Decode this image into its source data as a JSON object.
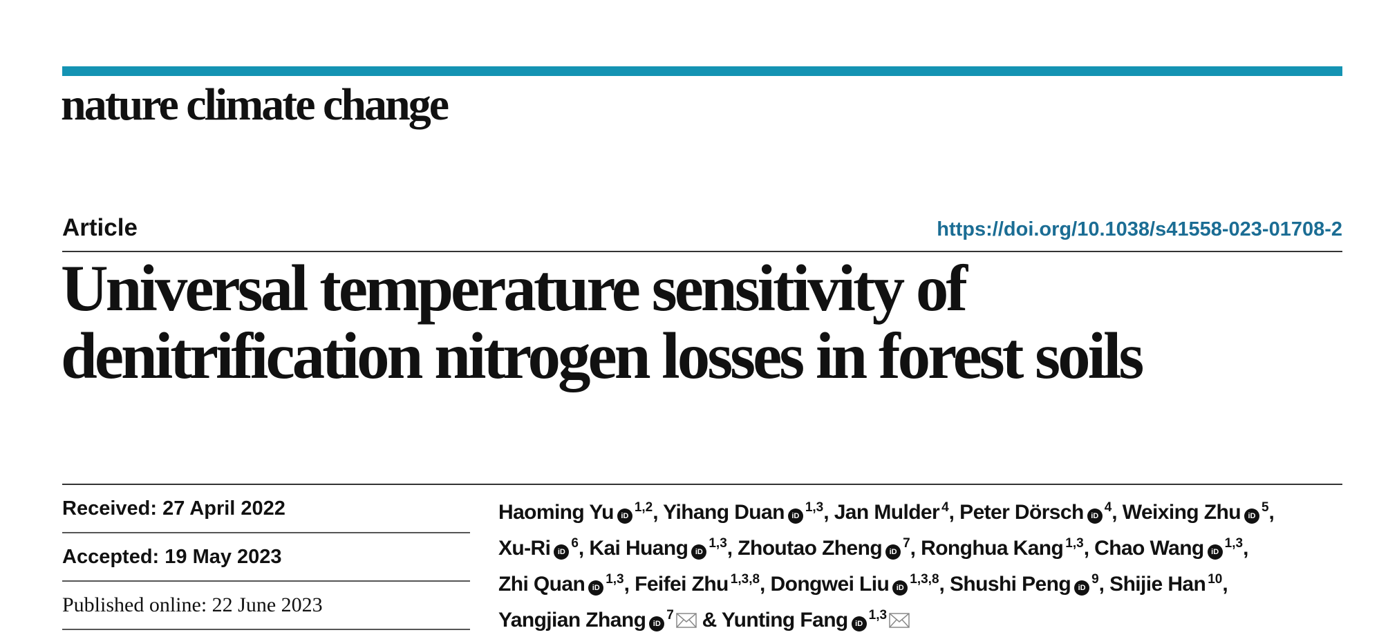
{
  "journal": {
    "name": "nature climate change",
    "accent": "#1493b3"
  },
  "article": {
    "type": "Article",
    "doi": "https://doi.org/10.1038/s41558-023-01708-2",
    "title_line1": "Universal temperature sensitivity of",
    "title_line2": "denitrification nitrogen losses in forest soils"
  },
  "dates": {
    "received": "Received: 27 April 2022",
    "accepted": "Accepted: 19 May 2023",
    "published": "Published online: 22 June 2023"
  },
  "authors": [
    {
      "name": "Haoming Yu",
      "orcid": true,
      "aff": "1,2",
      "sep": ", "
    },
    {
      "name": "Yihang Duan",
      "orcid": true,
      "aff": "1,3",
      "sep": ", "
    },
    {
      "name": "Jan Mulder",
      "orcid": false,
      "aff": "4",
      "sep": ", "
    },
    {
      "name": "Peter Dörsch",
      "orcid": true,
      "aff": "4",
      "sep": ", "
    },
    {
      "name": "Weixing Zhu",
      "orcid": true,
      "aff": "5",
      "sep": ", "
    },
    {
      "name": "Xu-Ri",
      "orcid": true,
      "aff": "6",
      "sep": ", "
    },
    {
      "name": "Kai Huang",
      "orcid": true,
      "aff": "1,3",
      "sep": ", "
    },
    {
      "name": "Zhoutao Zheng",
      "orcid": true,
      "aff": "7",
      "sep": ", "
    },
    {
      "name": "Ronghua Kang",
      "orcid": false,
      "aff": "1,3",
      "sep": ", "
    },
    {
      "name": "Chao Wang",
      "orcid": true,
      "aff": "1,3",
      "sep": ", "
    },
    {
      "name": "Zhi Quan",
      "orcid": true,
      "aff": "1,3",
      "sep": ", "
    },
    {
      "name": "Feifei Zhu",
      "orcid": false,
      "aff": "1,3,8",
      "sep": ", "
    },
    {
      "name": "Dongwei Liu",
      "orcid": true,
      "aff": "1,3,8",
      "sep": ", "
    },
    {
      "name": "Shushi Peng",
      "orcid": true,
      "aff": "9",
      "sep": ", "
    },
    {
      "name": "Shijie Han",
      "orcid": false,
      "aff": "10",
      "sep": ", "
    },
    {
      "name": "Yangjian Zhang",
      "orcid": true,
      "aff": "7",
      "mail": true,
      "sep": " & "
    },
    {
      "name": "Yunting Fang",
      "orcid": true,
      "aff": "1,3",
      "mail": true,
      "sep": ""
    }
  ],
  "icons": {
    "orcid": "orcid-icon",
    "mail": "mail-icon"
  },
  "orcid_label": "iD"
}
